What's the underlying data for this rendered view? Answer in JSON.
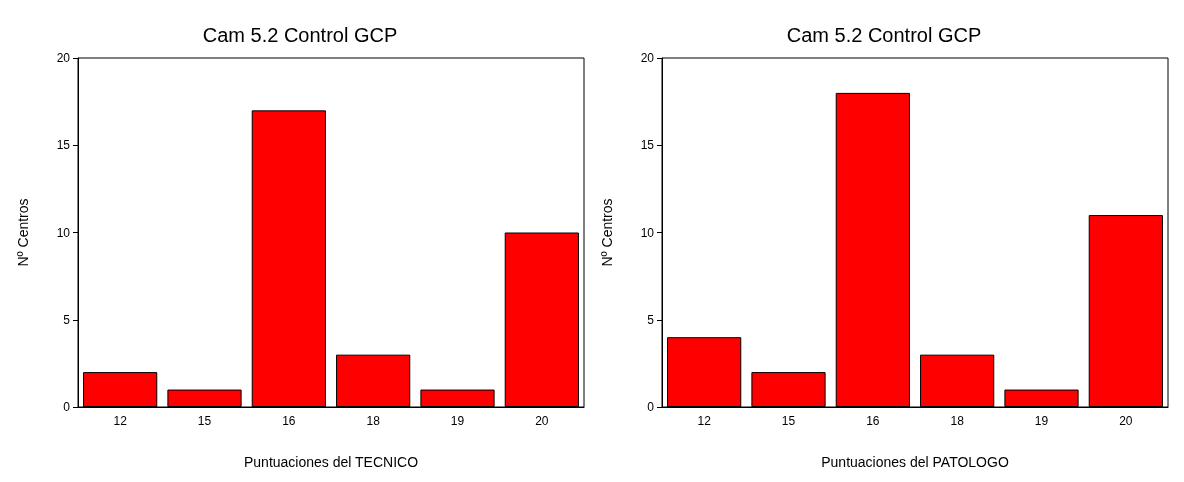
{
  "chart_data": [
    {
      "type": "bar",
      "title": "Cam 5.2 Control GCP",
      "xlabel": "Puntuaciones del TECNICO",
      "ylabel": "Nº Centros",
      "categories": [
        "12",
        "15",
        "16",
        "18",
        "19",
        "20"
      ],
      "values": [
        2,
        1,
        17,
        3,
        1,
        10
      ],
      "color": "#ff0000",
      "ylim": [
        0,
        20
      ],
      "yticks": [
        0,
        5,
        10,
        15,
        20
      ]
    },
    {
      "type": "bar",
      "title": "Cam 5.2 Control GCP",
      "xlabel": "Puntuaciones del PATOLOGO",
      "ylabel": "Nº Centros",
      "categories": [
        "12",
        "15",
        "16",
        "18",
        "19",
        "20"
      ],
      "values": [
        4,
        2,
        18,
        3,
        1,
        11
      ],
      "color": "#ff0000",
      "ylim": [
        0,
        20
      ],
      "yticks": [
        0,
        5,
        10,
        15,
        20
      ]
    }
  ]
}
